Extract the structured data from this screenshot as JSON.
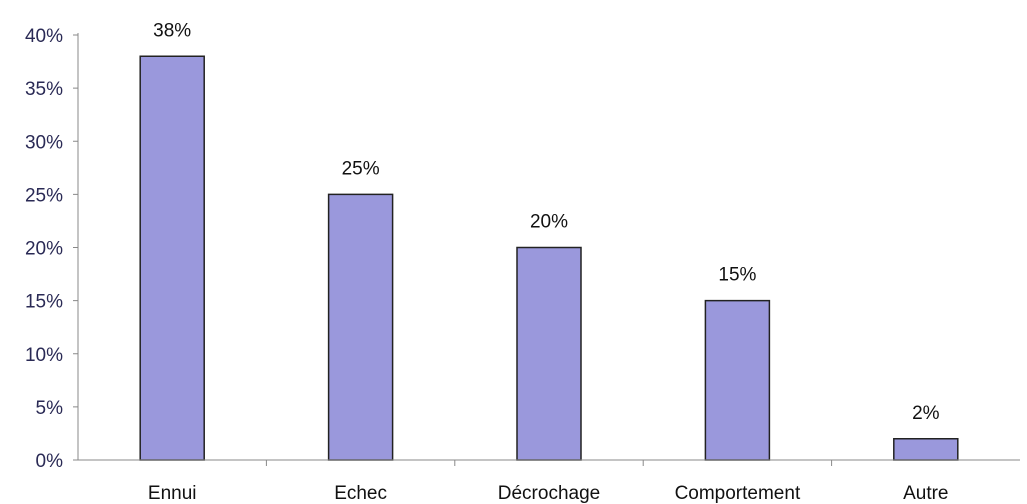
{
  "chart_data": {
    "type": "bar",
    "categories": [
      "Ennui",
      "Echec",
      "Décrochage",
      "Comportement",
      "Autre"
    ],
    "values": [
      38,
      25,
      20,
      15,
      2
    ],
    "data_labels": [
      "38%",
      "25%",
      "20%",
      "15%",
      "2%"
    ],
    "title": "",
    "xlabel": "",
    "ylabel": "",
    "ylim": [
      0,
      40
    ],
    "yticks": [
      0,
      5,
      10,
      15,
      20,
      25,
      30,
      35,
      40
    ],
    "ytick_labels": [
      "0%",
      "5%",
      "10%",
      "15%",
      "20%",
      "25%",
      "30%",
      "35%",
      "40%"
    ],
    "grid": false,
    "legend": "none",
    "colors": {
      "bar_fill": "#9a98dc",
      "bar_stroke": "#222222",
      "axis": "#888888",
      "tick_text": "#2a2a55",
      "label_text": "#111111"
    }
  }
}
